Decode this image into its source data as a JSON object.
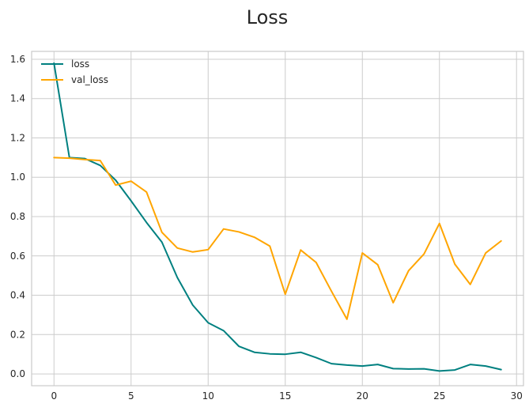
{
  "chart_data": {
    "type": "line",
    "title": "Loss",
    "xlabel": "",
    "ylabel": "",
    "xlim": [
      -1.45,
      30.45
    ],
    "ylim": [
      -0.06,
      1.64
    ],
    "xticks": [
      0,
      5,
      10,
      15,
      20,
      25,
      30
    ],
    "yticks": [
      0.0,
      0.2,
      0.4,
      0.6,
      0.8,
      1.0,
      1.2,
      1.4,
      1.6
    ],
    "xtick_labels": [
      "0",
      "5",
      "10",
      "15",
      "20",
      "25",
      "30"
    ],
    "ytick_labels": [
      "0.0",
      "0.2",
      "0.4",
      "0.6",
      "0.8",
      "1.0",
      "1.2",
      "1.4",
      "1.6"
    ],
    "grid": true,
    "legend_position": "top-left",
    "x": [
      0,
      1,
      2,
      3,
      4,
      5,
      6,
      7,
      8,
      9,
      10,
      11,
      12,
      13,
      14,
      15,
      16,
      17,
      18,
      19,
      20,
      21,
      22,
      23,
      24,
      25,
      26,
      27,
      28,
      29
    ],
    "series": [
      {
        "name": "loss",
        "color": "#008080",
        "values": [
          1.58,
          1.1,
          1.095,
          1.06,
          0.985,
          0.88,
          0.77,
          0.67,
          0.49,
          0.35,
          0.26,
          0.22,
          0.14,
          0.11,
          0.102,
          0.1,
          0.11,
          0.083,
          0.052,
          0.045,
          0.04,
          0.048,
          0.027,
          0.025,
          0.026,
          0.015,
          0.02,
          0.048,
          0.04,
          0.022
        ]
      },
      {
        "name": "val_loss",
        "color": "#ffa500",
        "values": [
          1.1,
          1.097,
          1.09,
          1.085,
          0.96,
          0.98,
          0.925,
          0.72,
          0.64,
          0.62,
          0.632,
          0.737,
          0.722,
          0.695,
          0.65,
          0.405,
          0.63,
          0.567,
          0.42,
          0.278,
          0.615,
          0.555,
          0.362,
          0.525,
          0.61,
          0.765,
          0.558,
          0.455,
          0.615,
          0.676
        ]
      }
    ]
  }
}
